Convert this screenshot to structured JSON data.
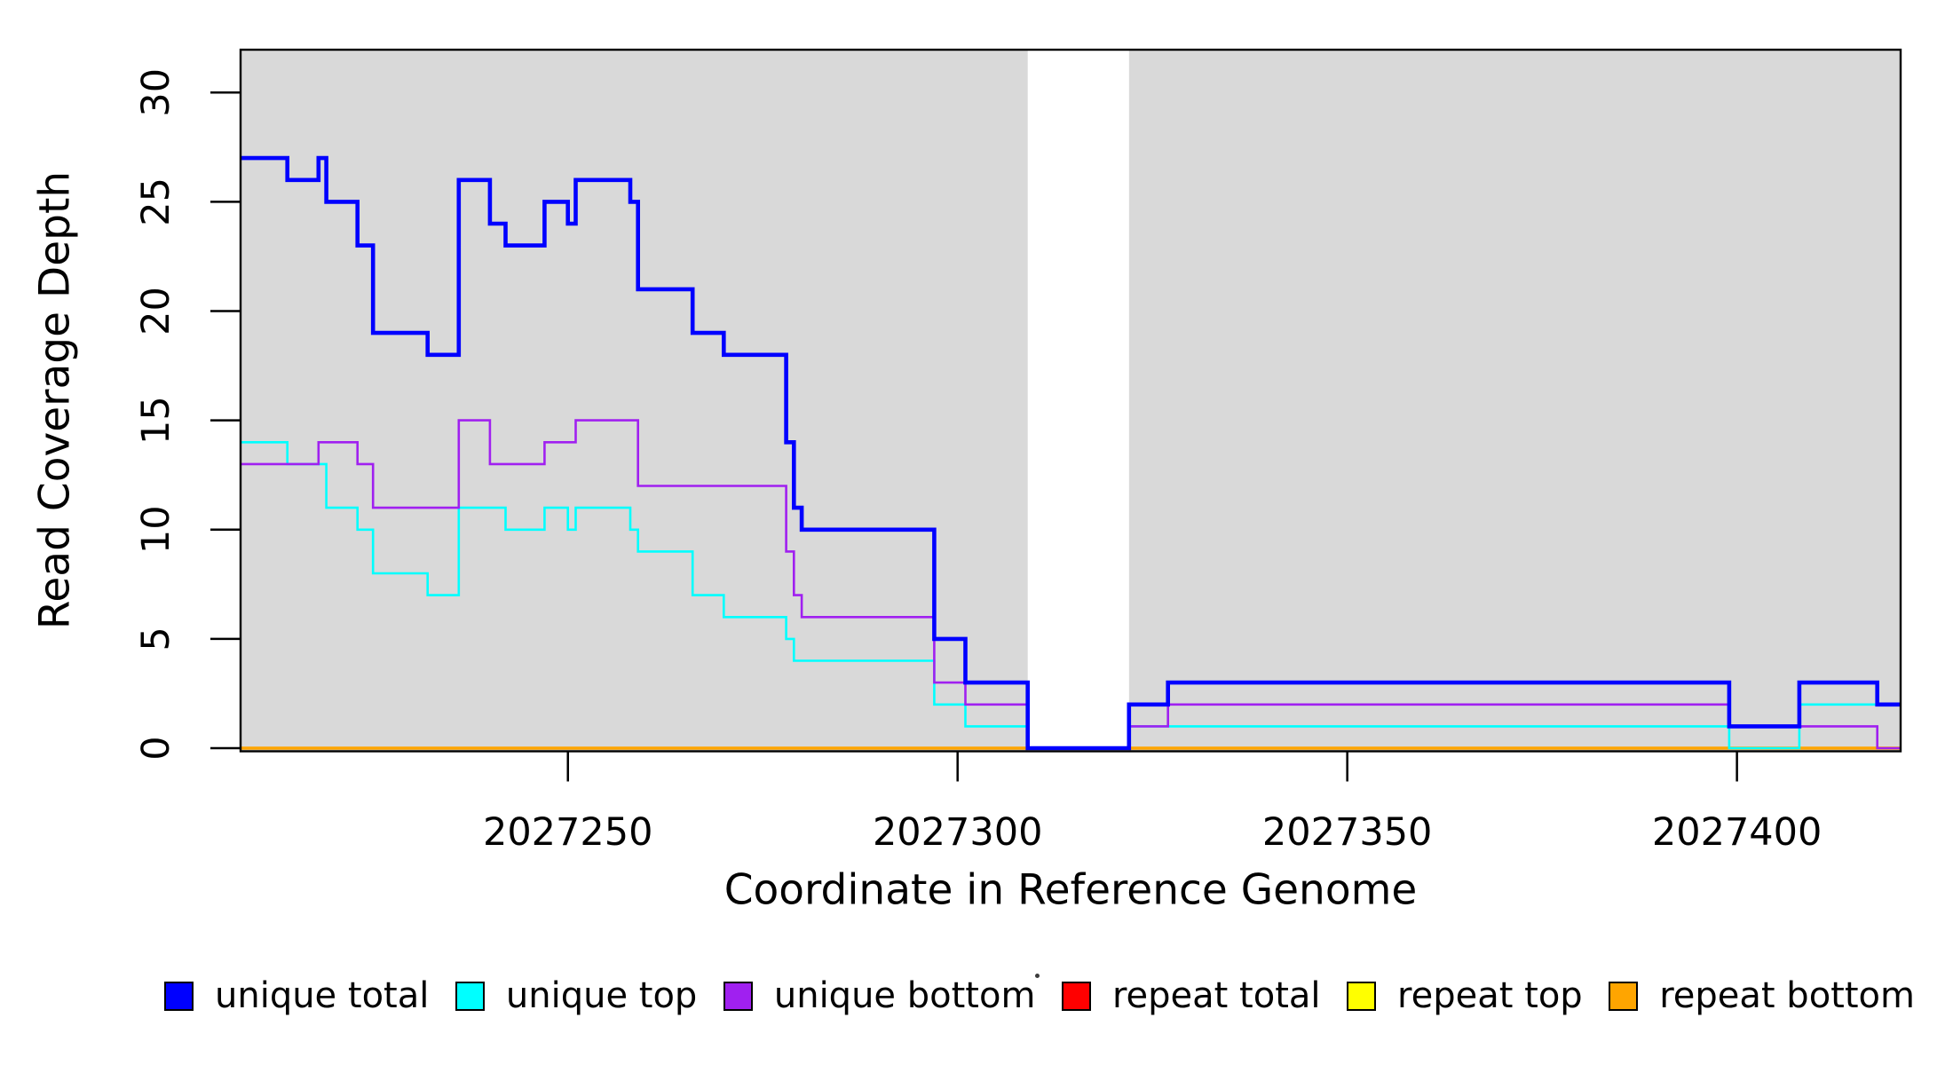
{
  "legend": {
    "items": [
      {
        "label": "unique total",
        "color": "#0000ff"
      },
      {
        "label": "unique top",
        "color": "#00ffff"
      },
      {
        "label": "unique bottom",
        "color": "#a020f0"
      },
      {
        "label": "repeat total",
        "color": "#ff0000"
      },
      {
        "label": "repeat top",
        "color": "#ffff00"
      },
      {
        "label": "repeat bottom",
        "color": "#ffa500"
      }
    ]
  },
  "chart_data": {
    "type": "line",
    "subtype": "step-after-coverage",
    "title": "",
    "xlabel": "Coordinate in Reference Genome",
    "ylabel": "Read Coverage Depth",
    "xlim": [
      2027208,
      2027421
    ],
    "ylim": [
      0,
      31.96
    ],
    "x_ticks": [
      2027250,
      2027300,
      2027350,
      2027400
    ],
    "y_ticks": [
      0,
      5,
      10,
      15,
      20,
      25,
      30
    ],
    "grid": false,
    "plot_background": "#d9d9d9",
    "gap_region": {
      "from": 2027309,
      "to": 2027322,
      "color": "#ffffff"
    },
    "legend_position": "bottom",
    "series": [
      {
        "name": "repeat total",
        "color": "#ff0000",
        "width": 2.6,
        "points": [
          [
            2027208,
            0
          ],
          [
            2027421,
            0
          ]
        ]
      },
      {
        "name": "repeat top",
        "color": "#ffff00",
        "width": 2.6,
        "points": [
          [
            2027208,
            0
          ],
          [
            2027421,
            0
          ]
        ]
      },
      {
        "name": "repeat bottom",
        "color": "#ffa500",
        "width": 3.6,
        "points": [
          [
            2027208,
            0
          ],
          [
            2027421,
            0
          ]
        ]
      },
      {
        "name": "unique top",
        "color": "#00ffff",
        "width": 2.6,
        "points": [
          [
            2027208,
            14
          ],
          [
            2027214,
            13
          ],
          [
            2027219,
            11
          ],
          [
            2027223,
            10
          ],
          [
            2027225,
            8
          ],
          [
            2027232,
            7
          ],
          [
            2027236,
            11
          ],
          [
            2027242,
            10
          ],
          [
            2027247,
            11
          ],
          [
            2027250,
            10
          ],
          [
            2027251,
            11
          ],
          [
            2027258,
            10
          ],
          [
            2027259,
            9
          ],
          [
            2027266,
            7
          ],
          [
            2027270,
            6
          ],
          [
            2027278,
            5
          ],
          [
            2027279,
            4
          ],
          [
            2027297,
            2
          ],
          [
            2027301,
            1
          ],
          [
            2027309,
            0
          ],
          [
            2027322,
            1
          ],
          [
            2027399,
            0
          ],
          [
            2027408,
            2
          ],
          [
            2027421,
            2
          ]
        ]
      },
      {
        "name": "unique bottom",
        "color": "#a020f0",
        "width": 2.6,
        "points": [
          [
            2027208,
            13
          ],
          [
            2027218,
            14
          ],
          [
            2027223,
            13
          ],
          [
            2027225,
            11
          ],
          [
            2027236,
            15
          ],
          [
            2027240,
            13
          ],
          [
            2027247,
            14
          ],
          [
            2027251,
            15
          ],
          [
            2027259,
            12
          ],
          [
            2027278,
            9
          ],
          [
            2027279,
            7
          ],
          [
            2027280,
            6
          ],
          [
            2027297,
            3
          ],
          [
            2027301,
            2
          ],
          [
            2027309,
            0
          ],
          [
            2027322,
            1
          ],
          [
            2027327,
            2
          ],
          [
            2027399,
            1
          ],
          [
            2027418,
            0
          ],
          [
            2027421,
            0
          ]
        ]
      },
      {
        "name": "unique total",
        "color": "#0000ff",
        "width": 4.6,
        "points": [
          [
            2027208,
            27
          ],
          [
            2027214,
            26
          ],
          [
            2027218,
            27
          ],
          [
            2027219,
            25
          ],
          [
            2027223,
            23
          ],
          [
            2027225,
            19
          ],
          [
            2027232,
            18
          ],
          [
            2027236,
            26
          ],
          [
            2027240,
            24
          ],
          [
            2027242,
            23
          ],
          [
            2027247,
            25
          ],
          [
            2027250,
            24
          ],
          [
            2027251,
            26
          ],
          [
            2027258,
            25
          ],
          [
            2027259,
            21
          ],
          [
            2027266,
            19
          ],
          [
            2027270,
            18
          ],
          [
            2027278,
            14
          ],
          [
            2027279,
            11
          ],
          [
            2027280,
            10
          ],
          [
            2027297,
            5
          ],
          [
            2027301,
            3
          ],
          [
            2027309,
            0
          ],
          [
            2027322,
            2
          ],
          [
            2027327,
            3
          ],
          [
            2027399,
            1
          ],
          [
            2027408,
            3
          ],
          [
            2027418,
            2
          ],
          [
            2027421,
            2
          ]
        ]
      }
    ]
  }
}
